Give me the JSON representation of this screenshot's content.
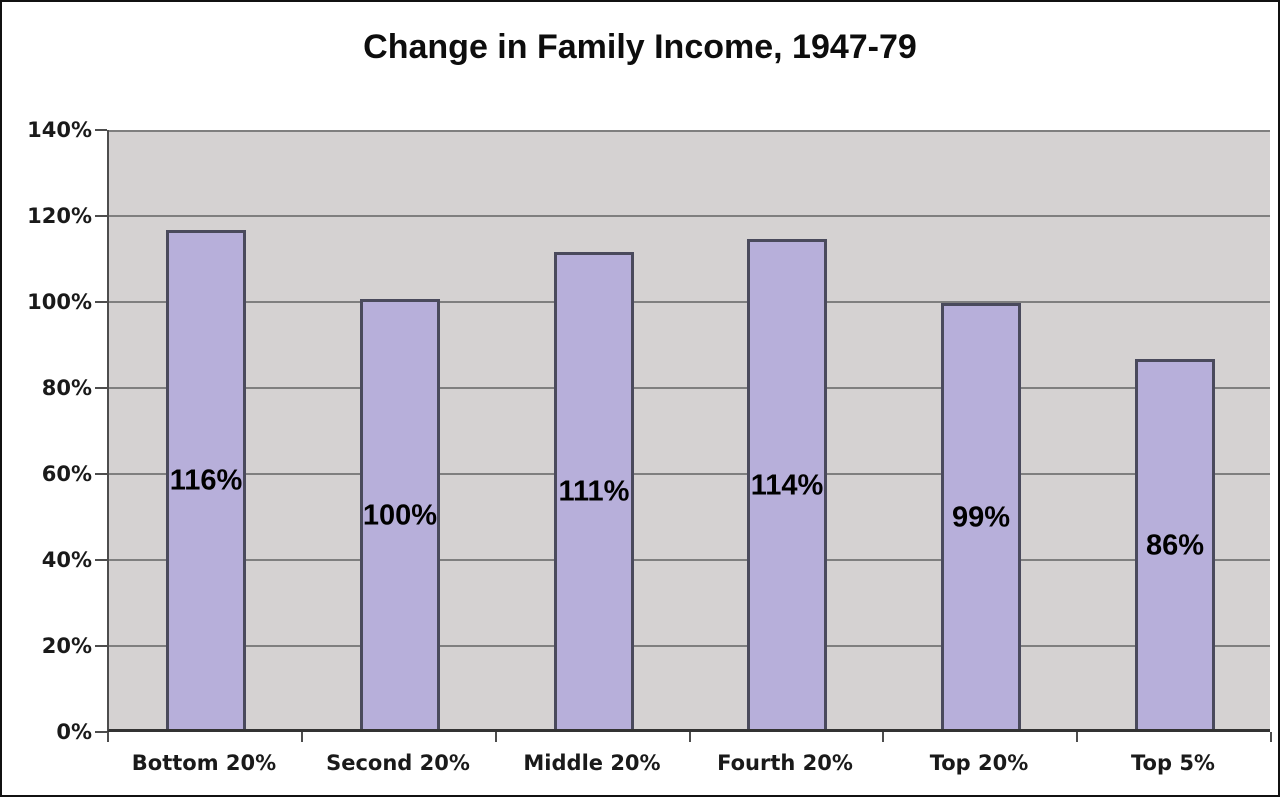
{
  "chart_data": {
    "type": "bar",
    "title": "Change in Family Income, 1947-79",
    "categories": [
      "Bottom 20%",
      "Second 20%",
      "Middle 20%",
      "Fourth 20%",
      "Top 20%",
      "Top 5%"
    ],
    "values": [
      116,
      100,
      111,
      114,
      99,
      86
    ],
    "bar_labels": [
      "116%",
      "100%",
      "111%",
      "114%",
      "99%",
      "86%"
    ],
    "xlabel": "",
    "ylabel": "",
    "ylim": [
      0,
      140
    ],
    "y_tick_step": 20,
    "y_tick_labels": [
      "0%",
      "20%",
      "40%",
      "60%",
      "80%",
      "100%",
      "120%",
      "140%"
    ],
    "grid": true,
    "legend": "none",
    "colors": {
      "bar_fill": "#b7afda",
      "bar_border": "#4a4a5c",
      "plot_background": "#d5d2d2",
      "gridline": "#7f7f7f",
      "axis": "#333333",
      "text": "#000000",
      "page_background": "#ffffff",
      "frame_border": "#111111"
    }
  }
}
